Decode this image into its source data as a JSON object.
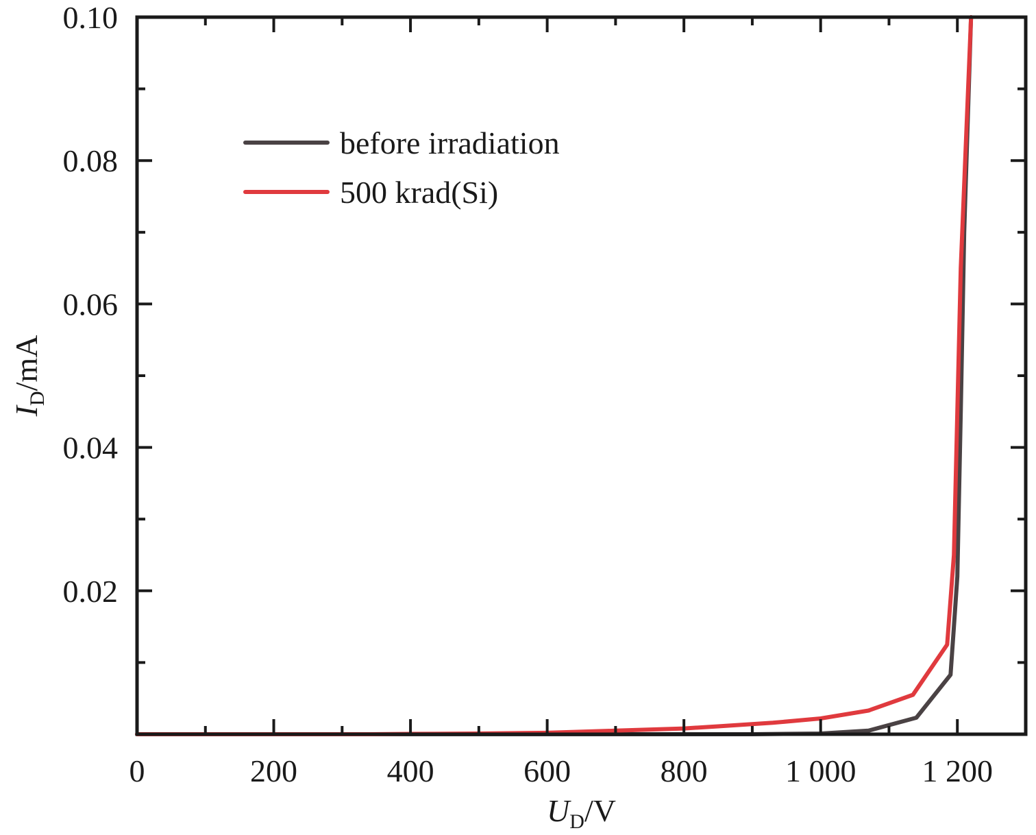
{
  "chart_data": {
    "type": "line",
    "xlabel": {
      "main": "U",
      "sub": "D",
      "unit": "/V"
    },
    "ylabel": {
      "main": "I",
      "sub": "D",
      "unit": "/mA"
    },
    "xlim": [
      0,
      1300
    ],
    "ylim": [
      0,
      0.1
    ],
    "x_major_ticks": [
      0,
      200,
      400,
      600,
      800,
      1000,
      1200
    ],
    "x_tick_labels": [
      "0",
      "200",
      "400",
      "600",
      "800",
      "1 000",
      "1 200"
    ],
    "x_minor_ticks": [
      100,
      300,
      500,
      700,
      900,
      1100,
      1300
    ],
    "y_major_ticks": [
      0.02,
      0.04,
      0.06,
      0.08,
      0.1
    ],
    "y_tick_labels": [
      "0.02",
      "0.04",
      "0.06",
      "0.08",
      "0.10"
    ],
    "y_minor_ticks": [
      0.01,
      0.03,
      0.05,
      0.07,
      0.09
    ],
    "legend_position": "upper-left",
    "grid": false,
    "series": [
      {
        "name": "before irradiation",
        "color": "#4a4244",
        "points": [
          [
            0,
            0
          ],
          [
            200,
            0
          ],
          [
            400,
            0
          ],
          [
            600,
            0
          ],
          [
            800,
            0
          ],
          [
            900,
            0
          ],
          [
            1000,
            0.0001
          ],
          [
            1070,
            0.0005
          ],
          [
            1140,
            0.0023
          ],
          [
            1190,
            0.0083
          ],
          [
            1195,
            0.015
          ],
          [
            1200,
            0.022
          ],
          [
            1205,
            0.045
          ],
          [
            1210,
            0.07
          ],
          [
            1220,
            0.1
          ]
        ]
      },
      {
        "name": "500 krad(Si)",
        "color": "#e03a3e",
        "points": [
          [
            0,
            0
          ],
          [
            200,
            0
          ],
          [
            340,
            0
          ],
          [
            400,
            5e-05
          ],
          [
            500,
            0.0001
          ],
          [
            600,
            0.0002
          ],
          [
            700,
            0.0005
          ],
          [
            800,
            0.0008
          ],
          [
            850,
            0.0011
          ],
          [
            930,
            0.0016
          ],
          [
            1000,
            0.0022
          ],
          [
            1070,
            0.0033
          ],
          [
            1135,
            0.0055
          ],
          [
            1185,
            0.0125
          ],
          [
            1195,
            0.025
          ],
          [
            1200,
            0.045
          ],
          [
            1205,
            0.065
          ],
          [
            1220,
            0.1
          ]
        ]
      }
    ]
  }
}
